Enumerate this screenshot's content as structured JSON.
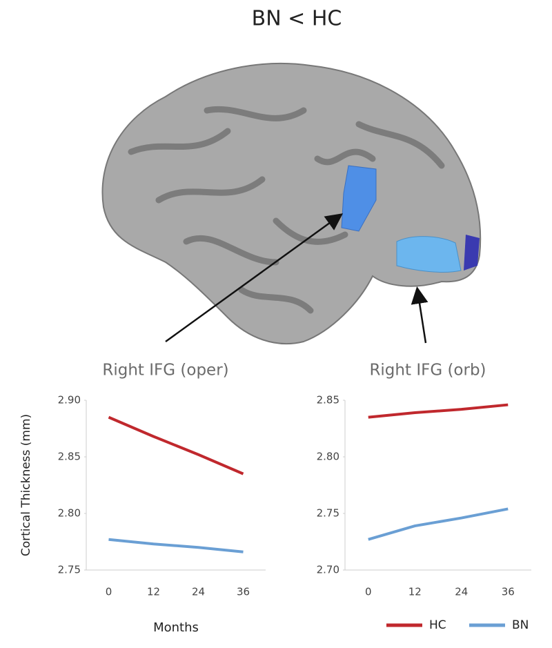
{
  "title": "BN < HC",
  "chart_data": [
    {
      "type": "line",
      "title": "Right IFG (oper)",
      "ylabel": "Cortical Thickness (mm)",
      "xlabel": "Months",
      "categories": [
        "0",
        "12",
        "24",
        "36"
      ],
      "series": [
        {
          "name": "HC",
          "color": "#c0282d",
          "values": [
            2.885,
            2.868,
            2.852,
            2.835
          ]
        },
        {
          "name": "BN",
          "color": "#6a9fd4",
          "values": [
            2.777,
            2.773,
            2.77,
            2.766
          ]
        }
      ],
      "ylim": [
        2.75,
        2.9
      ],
      "yticks": [
        2.75,
        {
          "value": 2.8,
          "label": "2.80"
        },
        2.85,
        {
          "value": 2.9,
          "label": "2.90"
        }
      ]
    },
    {
      "type": "line",
      "title": "Right IFG (orb)",
      "categories": [
        "0",
        "12",
        "24",
        "36"
      ],
      "series": [
        {
          "name": "HC",
          "color": "#c0282d",
          "values": [
            2.835,
            2.839,
            2.842,
            2.846
          ]
        },
        {
          "name": "BN",
          "color": "#6a9fd4",
          "values": [
            2.727,
            2.739,
            2.746,
            2.754
          ]
        }
      ],
      "ylim": [
        2.7,
        2.85
      ],
      "yticks": [
        {
          "value": 2.7,
          "label": "2.70"
        },
        2.75,
        {
          "value": 2.8,
          "label": "2.80"
        },
        2.85
      ],
      "legend": "bottom-right"
    }
  ]
}
